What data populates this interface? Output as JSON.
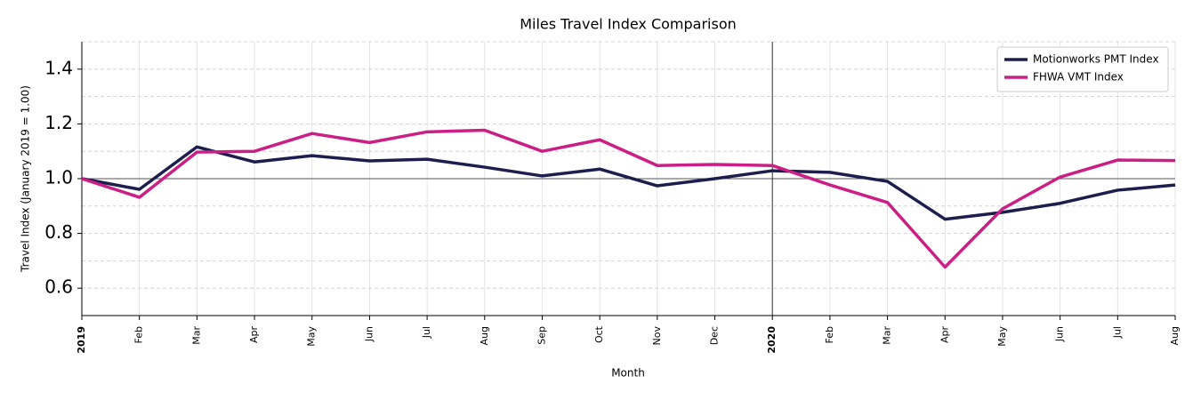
{
  "chart_data": {
    "type": "line",
    "title": "Miles Travel Index Comparison",
    "x_label": "Month",
    "y_label": "Travel Index (January 2019 = 1.00)",
    "categories": [
      "2019",
      "Feb",
      "Mar",
      "Apr",
      "May",
      "Jun",
      "Jul",
      "Aug",
      "Sep",
      "Oct",
      "Nov",
      "Dec",
      "2020",
      "Feb",
      "Mar",
      "Apr",
      "May",
      "Jun",
      "Jul",
      "Aug"
    ],
    "series": [
      {
        "name": "Motionworks PMT Index",
        "color": "#1c1f4e",
        "values": [
          1.0,
          0.961,
          1.116,
          1.061,
          1.084,
          1.065,
          1.071,
          1.042,
          1.01,
          1.035,
          0.974,
          1.0,
          1.029,
          1.023,
          0.99,
          0.852,
          0.877,
          0.91,
          0.958,
          0.977
        ]
      },
      {
        "name": "FHWA VMT Index",
        "color": "#cc1f86",
        "values": [
          1.0,
          0.932,
          1.097,
          1.1,
          1.165,
          1.132,
          1.171,
          1.177,
          1.1,
          1.142,
          1.048,
          1.052,
          1.048,
          0.977,
          0.913,
          0.677,
          0.89,
          1.006,
          1.068,
          1.066
        ]
      }
    ],
    "ylim": [
      0.5,
      1.5
    ],
    "yticks": [
      0.6,
      0.8,
      {
        "value": 1,
        "label": "1.0"
      },
      1.2,
      1.4
    ],
    "yminor_ticks": [
      0.7,
      0.9,
      1.1,
      1.3,
      1.5
    ],
    "reference_lines": {
      "x": "2020",
      "y": 1
    },
    "grid": true,
    "legend": "upper right"
  }
}
